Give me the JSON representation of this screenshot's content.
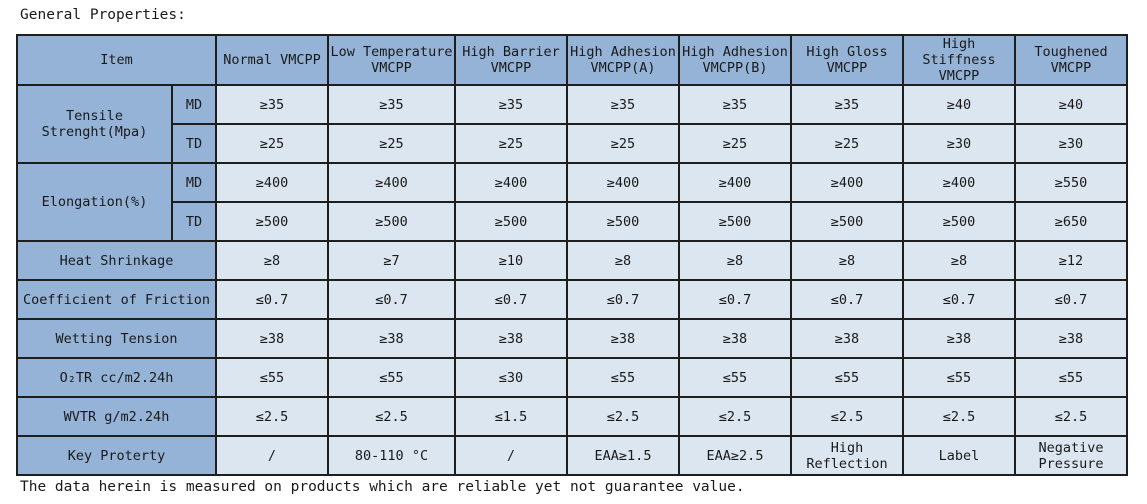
{
  "heading": "General Properties:",
  "note": "The data herein is measured on products which are reliable yet not guarantee value.",
  "table": {
    "item_header": "Item",
    "columns": [
      [
        "Normal VMCPP"
      ],
      [
        "Low Temperature",
        "VMCPP"
      ],
      [
        "High Barrier",
        "VMCPP"
      ],
      [
        "High Adhesion",
        "VMCPP(A)"
      ],
      [
        "High Adhesion",
        "VMCPP(B)"
      ],
      [
        "High Gloss",
        "VMCPP"
      ],
      [
        "High Stiffness",
        "VMCPP"
      ],
      [
        "Toughened",
        "VMCPP"
      ]
    ],
    "groups": [
      {
        "label": [
          "Tensile",
          "Strenght(Mpa)"
        ],
        "rows": [
          {
            "sub": "MD",
            "values": [
              "≥35",
              "≥35",
              "≥35",
              "≥35",
              "≥35",
              "≥35",
              "≥40",
              "≥40"
            ]
          },
          {
            "sub": "TD",
            "values": [
              "≥25",
              "≥25",
              "≥25",
              "≥25",
              "≥25",
              "≥25",
              "≥30",
              "≥30"
            ]
          }
        ]
      },
      {
        "label": [
          "Elongation(%)"
        ],
        "rows": [
          {
            "sub": "MD",
            "values": [
              "≥400",
              "≥400",
              "≥400",
              "≥400",
              "≥400",
              "≥400",
              "≥400",
              "≥550"
            ]
          },
          {
            "sub": "TD",
            "values": [
              "≥500",
              "≥500",
              "≥500",
              "≥500",
              "≥500",
              "≥500",
              "≥500",
              "≥650"
            ]
          }
        ]
      }
    ],
    "single_rows": [
      {
        "label": "Heat Shrinkage",
        "values": [
          [
            "≥8"
          ],
          [
            "≥7"
          ],
          [
            "≥10"
          ],
          [
            "≥8"
          ],
          [
            "≥8"
          ],
          [
            "≥8"
          ],
          [
            "≥8"
          ],
          [
            "≥12"
          ]
        ]
      },
      {
        "label": "Coefficient of Friction",
        "values": [
          [
            "≤0.7"
          ],
          [
            "≤0.7"
          ],
          [
            "≤0.7"
          ],
          [
            "≤0.7"
          ],
          [
            "≤0.7"
          ],
          [
            "≤0.7"
          ],
          [
            "≤0.7"
          ],
          [
            "≤0.7"
          ]
        ]
      },
      {
        "label": "Wetting Tension",
        "values": [
          [
            "≥38"
          ],
          [
            "≥38"
          ],
          [
            "≥38"
          ],
          [
            "≥38"
          ],
          [
            "≥38"
          ],
          [
            "≥38"
          ],
          [
            "≥38"
          ],
          [
            "≥38"
          ]
        ]
      },
      {
        "label": "O₂TR cc/m2.24h",
        "values": [
          [
            "≤55"
          ],
          [
            "≤55"
          ],
          [
            "≤30"
          ],
          [
            "≤55"
          ],
          [
            "≤55"
          ],
          [
            "≤55"
          ],
          [
            "≤55"
          ],
          [
            "≤55"
          ]
        ]
      },
      {
        "label": "WVTR g/m2.24h",
        "values": [
          [
            "≤2.5"
          ],
          [
            "≤2.5"
          ],
          [
            "≤1.5"
          ],
          [
            "≤2.5"
          ],
          [
            "≤2.5"
          ],
          [
            "≤2.5"
          ],
          [
            "≤2.5"
          ],
          [
            "≤2.5"
          ]
        ]
      },
      {
        "label": "Key Proterty",
        "values": [
          [
            "/"
          ],
          [
            "80-110 °C"
          ],
          [
            "/"
          ],
          [
            "EAA≥1.5"
          ],
          [
            "EAA≥2.5"
          ],
          [
            "High",
            "Reflection"
          ],
          [
            "Label"
          ],
          [
            "Negative",
            "Pressure"
          ]
        ]
      }
    ]
  }
}
